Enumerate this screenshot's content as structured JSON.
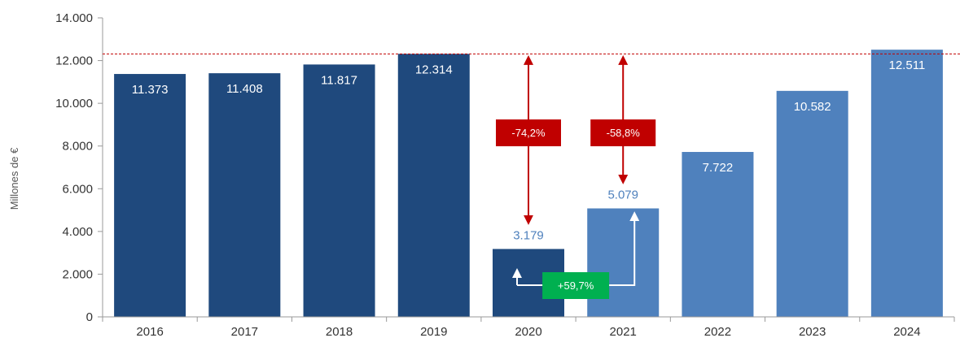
{
  "chart_data": {
    "type": "bar",
    "categories": [
      "2016",
      "2017",
      "2018",
      "2019",
      "2020",
      "2021",
      "2022",
      "2023",
      "2024"
    ],
    "values": [
      11373,
      11408,
      11817,
      12314,
      3179,
      5079,
      7722,
      10582,
      12511
    ],
    "value_labels": [
      "11.373",
      "11.408",
      "11.817",
      "12.314",
      "3.179",
      "5.079",
      "7.722",
      "10.582",
      "12.511"
    ],
    "ylabel": "Millones de €",
    "ylim": [
      0,
      14000
    ],
    "yticks": [
      0,
      2000,
      4000,
      6000,
      8000,
      10000,
      12000,
      14000
    ],
    "ytick_labels": [
      "0",
      "2.000",
      "4.000",
      "6.000",
      "8.000",
      "10.000",
      "12.000",
      "14.000"
    ],
    "reference_line": {
      "y": 12314,
      "style": "dashed",
      "color": "#c00000"
    },
    "grid": false,
    "colors": {
      "historical": "#1f497d",
      "recovery": "#4f81bd",
      "label_inside": "#ffffff",
      "label_outside": "#4f81bd",
      "decline": "#c00000",
      "growth": "#00b050"
    },
    "annotations": [
      {
        "text": "-74,2%",
        "kind": "decline",
        "category": "2020",
        "from": 12314,
        "to": 3179
      },
      {
        "text": "-58,8%",
        "kind": "decline",
        "category": "2021",
        "from": 12314,
        "to": 5079
      },
      {
        "text": "+59,7%",
        "kind": "growth",
        "from_category": "2020",
        "to_category": "2021"
      }
    ]
  }
}
